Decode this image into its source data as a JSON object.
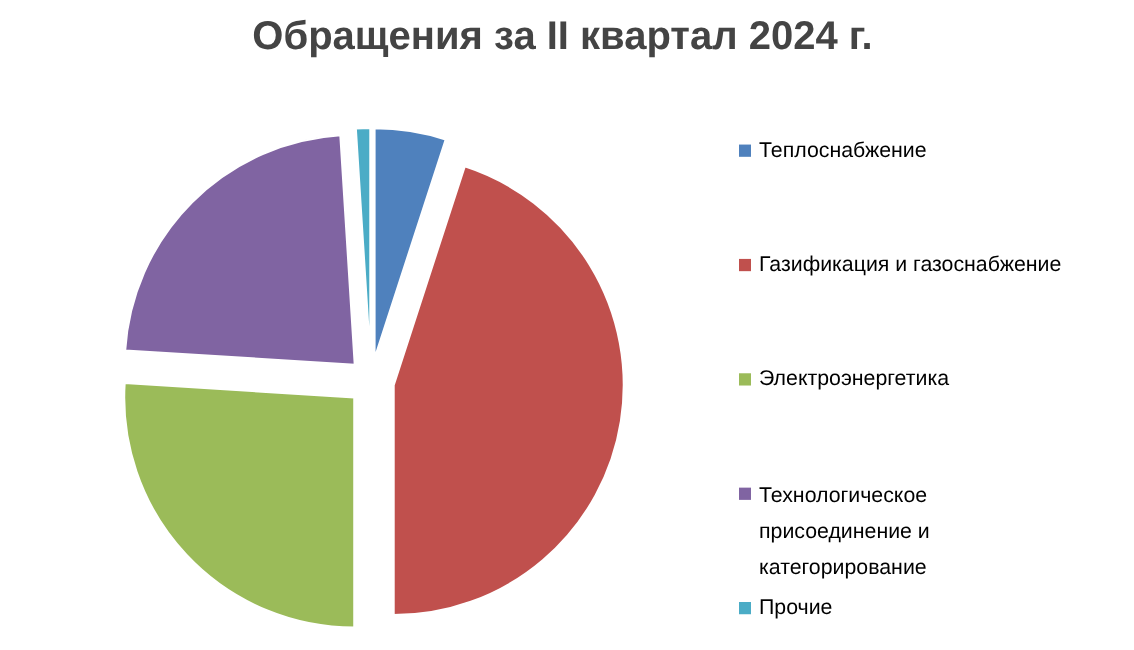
{
  "chart_data": {
    "type": "pie",
    "title": "Обращения за II квартал  2024 г.",
    "categories": [
      "Теплоснабжение",
      "Газификация и газоснабжение",
      "Электроэнергетика",
      "Технологическое присоединение  и категорирование",
      "Прочие"
    ],
    "values": [
      5,
      45,
      26,
      23,
      1
    ],
    "colors": [
      "#4f81bd",
      "#c0504d",
      "#9bbb59",
      "#8064a2",
      "#4bacc6"
    ],
    "legend": "right"
  }
}
